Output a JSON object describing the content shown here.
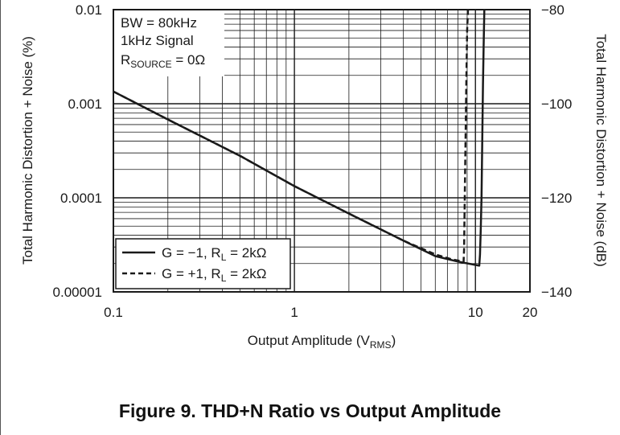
{
  "caption": "Figure 9. THD+N Ratio vs Output Amplitude",
  "chart_data": {
    "type": "line",
    "title": "",
    "xlabel": {
      "main": "Output Amplitude (V",
      "sub": "RMS",
      "end": ")"
    },
    "ylabel_left": "Total Harmonic Distortion + Noise (%)",
    "ylabel_right": "Total Harmonic Distortion + Noise (dB)",
    "x_scale": "log",
    "y_scale": "log",
    "xlim": [
      0.1,
      20
    ],
    "ylim": [
      1e-05,
      0.01
    ],
    "y2lim": [
      -140,
      -80
    ],
    "x_ticks": [
      {
        "value": 0.1,
        "label": "0.1"
      },
      {
        "value": 1,
        "label": "1"
      },
      {
        "value": 10,
        "label": "10"
      },
      {
        "value": 20,
        "label": "20"
      }
    ],
    "y_ticks": [
      {
        "value": 1e-05,
        "label": "0.00001"
      },
      {
        "value": 0.0001,
        "label": "0.0001"
      },
      {
        "value": 0.001,
        "label": "0.001"
      },
      {
        "value": 0.01,
        "label": "0.01"
      }
    ],
    "y2_ticks": [
      {
        "value": -140,
        "label": "−140"
      },
      {
        "value": -120,
        "label": "−120"
      },
      {
        "value": -100,
        "label": "−100"
      },
      {
        "value": -80,
        "label": "−80"
      }
    ],
    "grid": true,
    "conditions": [
      {
        "text": "BW = 80kHz"
      },
      {
        "text": "1kHz Signal"
      },
      {
        "main": "R",
        "sub": "SOURCE",
        "end": " = 0Ω"
      }
    ],
    "legend_position": "bottom-left",
    "series": [
      {
        "name": {
          "main": "G = −1, R",
          "sub": "L",
          "end": " = 2kΩ"
        },
        "style": "solid",
        "points": [
          [
            0.1,
            0.00135
          ],
          [
            0.2,
            0.00068
          ],
          [
            0.5,
            0.00028
          ],
          [
            1,
            0.000133
          ],
          [
            2,
            6.8e-05
          ],
          [
            4,
            3.5e-05
          ],
          [
            6,
            2.4e-05
          ],
          [
            8,
            2.1e-05
          ],
          [
            10.5,
            1.9e-05
          ],
          [
            10.6,
            2.5e-05
          ],
          [
            10.7,
            4.5e-05
          ],
          [
            10.8,
            0.0001
          ],
          [
            10.9,
            0.0004
          ],
          [
            11.0,
            0.0016
          ],
          [
            11.1,
            0.004
          ],
          [
            11.2,
            0.01
          ]
        ]
      },
      {
        "name": {
          "main": "G = +1, R",
          "sub": "L",
          "end": " = 2kΩ"
        },
        "style": "dashed",
        "points": [
          [
            0.1,
            0.00135
          ],
          [
            0.2,
            0.00068
          ],
          [
            0.5,
            0.00028
          ],
          [
            1,
            0.000133
          ],
          [
            2,
            6.8e-05
          ],
          [
            4,
            3.5e-05
          ],
          [
            6,
            2.5e-05
          ],
          [
            7.5,
            2.2e-05
          ],
          [
            8.6,
            2.1e-05
          ],
          [
            8.65,
            2.8e-05
          ],
          [
            8.7,
            6e-05
          ],
          [
            8.8,
            0.0003
          ],
          [
            8.9,
            0.0015
          ],
          [
            9.0,
            0.006
          ],
          [
            9.1,
            0.01
          ]
        ]
      }
    ]
  }
}
